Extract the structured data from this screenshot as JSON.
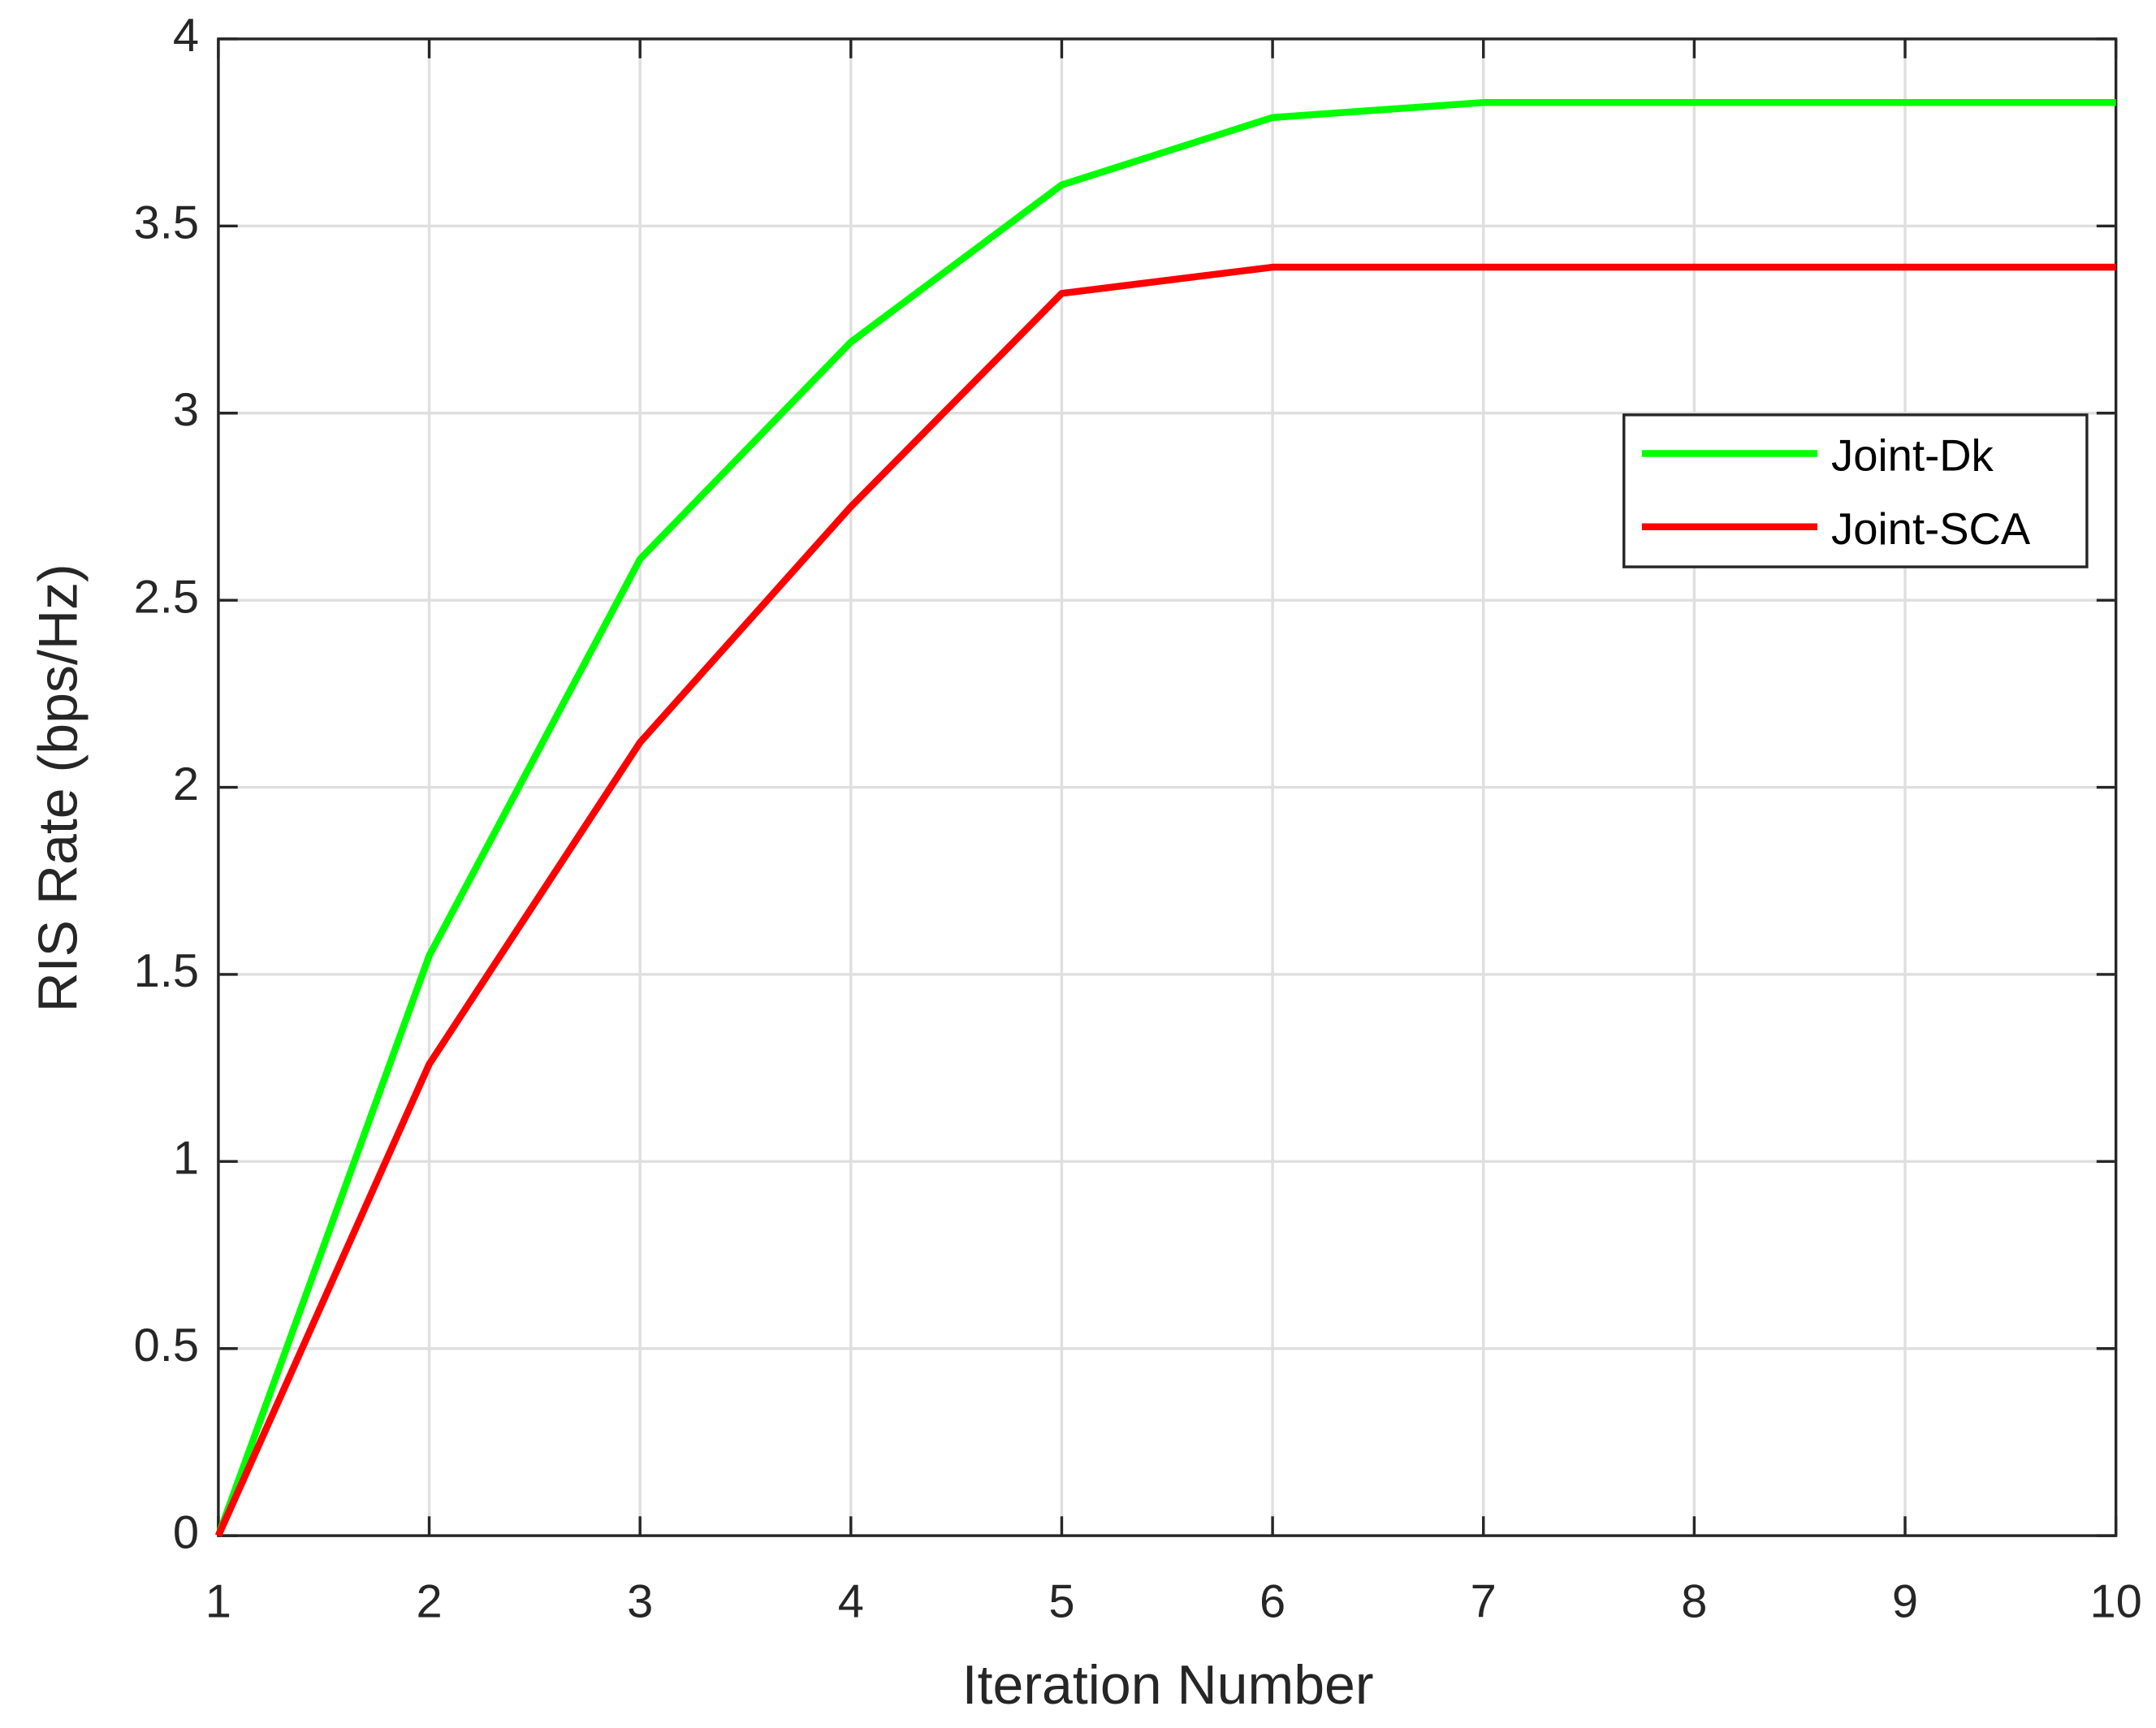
{
  "chart_data": {
    "type": "line",
    "x_label": "Iteration Number",
    "y_label": "RIS Rate (bps/Hz)",
    "x": [
      1,
      2,
      3,
      4,
      5,
      6,
      7,
      8,
      9,
      10
    ],
    "series": [
      {
        "name": "Joint-Dk",
        "color": "#00ff00",
        "values": [
          0,
          1.55,
          2.61,
          3.19,
          3.61,
          3.79,
          3.83,
          3.83,
          3.83,
          3.83
        ]
      },
      {
        "name": "Joint-SCA",
        "color": "#ff0000",
        "values": [
          0,
          1.26,
          2.12,
          2.75,
          3.32,
          3.39,
          3.39,
          3.39,
          3.39,
          3.39
        ]
      }
    ],
    "xlim": [
      1,
      10
    ],
    "xticks": [
      1,
      2,
      3,
      4,
      5,
      6,
      7,
      8,
      9,
      10
    ],
    "ylim": [
      0,
      4
    ],
    "yticks": [
      0,
      0.5,
      1,
      1.5,
      2,
      2.5,
      3,
      3.5,
      4
    ],
    "grid": true,
    "legend": "right"
  }
}
